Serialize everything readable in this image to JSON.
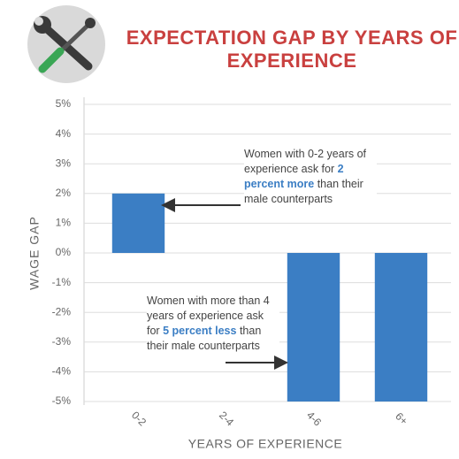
{
  "chart_data": {
    "type": "bar",
    "title": "EXPECTATION GAP BY YEARS OF EXPERIENCE",
    "x_label": "YEARS OF EXPERIENCE",
    "y_label": "WAGE GAP",
    "categories": [
      "0-2",
      "2-4",
      "4-6",
      "6+"
    ],
    "values": [
      2,
      0,
      -5,
      -5
    ],
    "color": "#3b7ec4",
    "ylim": [
      -5,
      5
    ],
    "yticks": [
      {
        "value": 5,
        "label": "5%"
      },
      {
        "value": 4,
        "label": "4%"
      },
      {
        "value": 3,
        "label": "3%"
      },
      {
        "value": 2,
        "label": "2%"
      },
      {
        "value": 1,
        "label": "1%"
      },
      {
        "value": 0,
        "label": "0%"
      },
      {
        "value": -1,
        "label": "-1%"
      },
      {
        "value": -2,
        "label": "-2%"
      },
      {
        "value": -3,
        "label": "-3%"
      },
      {
        "value": -4,
        "label": "-4%"
      },
      {
        "value": -5,
        "label": "-5%"
      }
    ],
    "grid": true,
    "annotations": [
      {
        "parts": [
          "Women with 0-2 years of experience ask for",
          "2 percent more",
          "than their male counterparts"
        ]
      },
      {
        "parts": [
          "Women with more than 4 years of experience ask for",
          "5 percent less",
          "than their male counterparts"
        ]
      }
    ]
  }
}
